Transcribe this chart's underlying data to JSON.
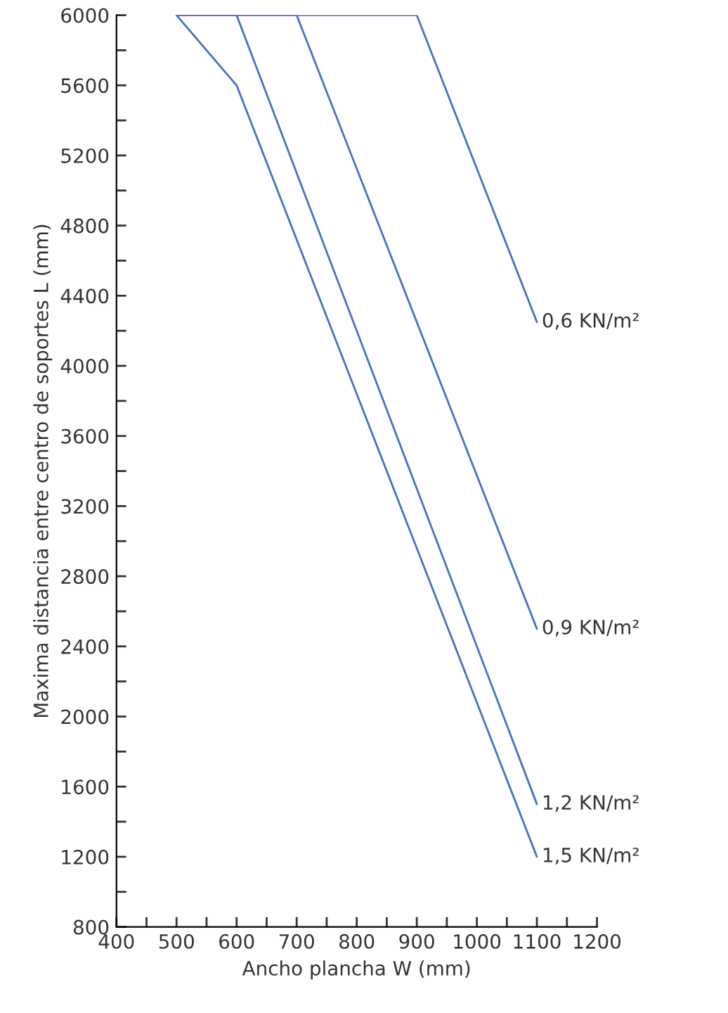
{
  "chart_data": {
    "type": "line",
    "xlabel": "Ancho plancha W (mm)",
    "ylabel": "Maxima distancia entre centro de soportes L (mm)",
    "xlim": [
      400,
      1200
    ],
    "ylim": [
      800,
      6000
    ],
    "xticks": [
      400,
      {
        "value": 450,
        "label": null
      },
      500,
      {
        "value": 550,
        "label": null
      },
      600,
      {
        "value": 650,
        "label": null
      },
      700,
      {
        "value": 750,
        "label": null
      },
      800,
      {
        "value": 850,
        "label": null
      },
      900,
      {
        "value": 950,
        "label": null
      },
      1000,
      {
        "value": 1050,
        "label": null
      },
      1100,
      {
        "value": 1150,
        "label": null
      },
      1200
    ],
    "yticks": [
      800,
      {
        "value": 1000,
        "label": null
      },
      1200,
      {
        "value": 1400,
        "label": null
      },
      1600,
      {
        "value": 1800,
        "label": null
      },
      2000,
      {
        "value": 2200,
        "label": null
      },
      2400,
      {
        "value": 2600,
        "label": null
      },
      2800,
      {
        "value": 3000,
        "label": null
      },
      3200,
      {
        "value": 3400,
        "label": null
      },
      3600,
      {
        "value": 3800,
        "label": null
      },
      4000,
      {
        "value": 4200,
        "label": null
      },
      4400,
      {
        "value": 4600,
        "label": null
      },
      4800,
      {
        "value": 5000,
        "label": null
      },
      5200,
      {
        "value": 5400,
        "label": null
      },
      5600,
      {
        "value": 5800,
        "label": null
      },
      6000
    ],
    "grid": false,
    "legend": false,
    "marker": "none",
    "line_style": "solid",
    "series": [
      {
        "name": "0,6 KN/m²",
        "color": "#4472c4",
        "x": [
          500,
          900,
          1100
        ],
        "values": [
          6000,
          6000,
          4250
        ]
      },
      {
        "name": "0,9 KN/m²",
        "color": "#4472c4",
        "x": [
          500,
          700,
          1100
        ],
        "values": [
          6000,
          6000,
          2500
        ]
      },
      {
        "name": "1,2 KN/m²",
        "color": "#4472c4",
        "x": [
          500,
          600,
          1100
        ],
        "values": [
          6000,
          6000,
          1500
        ]
      },
      {
        "name": "1,5 KN/m²",
        "color": "#4472c4",
        "x": [
          500,
          600,
          1100
        ],
        "values": [
          6000,
          5600,
          1200
        ]
      }
    ]
  }
}
